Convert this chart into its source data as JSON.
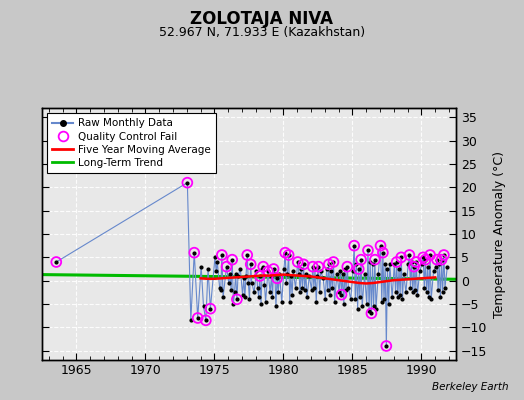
{
  "title": "ZOLOTAJA NIVA",
  "subtitle": "52.967 N, 71.933 E (Kazakhstan)",
  "ylabel": "Temperature Anomaly (°C)",
  "credit": "Berkeley Earth",
  "xlim": [
    1962.5,
    1992.5
  ],
  "ylim": [
    -17,
    37
  ],
  "yticks": [
    -15,
    -10,
    -5,
    0,
    5,
    10,
    15,
    20,
    25,
    30,
    35
  ],
  "xticks": [
    1965,
    1970,
    1975,
    1980,
    1985,
    1990
  ],
  "bg_color": "#c8c8c8",
  "plot_bg_color": "#e8e8e8",
  "raw_color": "#6688cc",
  "raw_dot_color": "#000000",
  "qc_color": "#ff00ff",
  "moving_avg_color": "#ff0000",
  "trend_color": "#00bb00",
  "grid_color": "#ffffff",
  "raw_monthly_data": [
    [
      1963.54,
      4.0
    ],
    [
      1973.04,
      21.0
    ],
    [
      1973.29,
      -8.5
    ],
    [
      1973.54,
      6.0
    ],
    [
      1973.79,
      -8.0
    ],
    [
      1974.04,
      3.0
    ],
    [
      1974.21,
      -5.5
    ],
    [
      1974.38,
      -8.5
    ],
    [
      1974.54,
      2.5
    ],
    [
      1974.71,
      -6.0
    ],
    [
      1975.04,
      5.0
    ],
    [
      1975.13,
      2.0
    ],
    [
      1975.21,
      4.0
    ],
    [
      1975.38,
      -1.5
    ],
    [
      1975.46,
      -2.0
    ],
    [
      1975.54,
      5.5
    ],
    [
      1975.63,
      -3.5
    ],
    [
      1975.88,
      3.0
    ],
    [
      1976.04,
      -0.5
    ],
    [
      1976.13,
      1.5
    ],
    [
      1976.21,
      -2.0
    ],
    [
      1976.29,
      4.5
    ],
    [
      1976.38,
      -5.0
    ],
    [
      1976.46,
      -2.5
    ],
    [
      1976.54,
      1.5
    ],
    [
      1976.63,
      -4.0
    ],
    [
      1976.71,
      1.0
    ],
    [
      1976.88,
      2.5
    ],
    [
      1977.04,
      -3.0
    ],
    [
      1977.13,
      0.5
    ],
    [
      1977.21,
      -3.5
    ],
    [
      1977.29,
      1.0
    ],
    [
      1977.38,
      5.5
    ],
    [
      1977.46,
      -0.5
    ],
    [
      1977.54,
      -4.0
    ],
    [
      1977.63,
      3.5
    ],
    [
      1977.71,
      -0.5
    ],
    [
      1977.88,
      -2.5
    ],
    [
      1978.04,
      2.0
    ],
    [
      1978.13,
      -1.5
    ],
    [
      1978.21,
      -3.5
    ],
    [
      1978.29,
      1.0
    ],
    [
      1978.38,
      -5.0
    ],
    [
      1978.46,
      2.5
    ],
    [
      1978.54,
      3.0
    ],
    [
      1978.63,
      -1.0
    ],
    [
      1978.71,
      -4.5
    ],
    [
      1978.88,
      2.0
    ],
    [
      1979.04,
      -2.5
    ],
    [
      1979.13,
      1.0
    ],
    [
      1979.21,
      -3.5
    ],
    [
      1979.29,
      2.5
    ],
    [
      1979.38,
      1.5
    ],
    [
      1979.46,
      -5.5
    ],
    [
      1979.54,
      0.5
    ],
    [
      1979.63,
      -2.5
    ],
    [
      1979.71,
      1.5
    ],
    [
      1979.88,
      -4.5
    ],
    [
      1980.04,
      2.5
    ],
    [
      1980.13,
      6.0
    ],
    [
      1980.21,
      -0.5
    ],
    [
      1980.29,
      1.5
    ],
    [
      1980.38,
      5.5
    ],
    [
      1980.46,
      -4.5
    ],
    [
      1980.54,
      1.0
    ],
    [
      1980.63,
      -3.0
    ],
    [
      1980.71,
      2.0
    ],
    [
      1980.88,
      -1.5
    ],
    [
      1981.04,
      4.0
    ],
    [
      1981.13,
      1.5
    ],
    [
      1981.21,
      -2.5
    ],
    [
      1981.29,
      2.5
    ],
    [
      1981.38,
      -1.5
    ],
    [
      1981.46,
      3.5
    ],
    [
      1981.54,
      -2.0
    ],
    [
      1981.63,
      1.5
    ],
    [
      1981.71,
      -3.5
    ],
    [
      1981.88,
      1.0
    ],
    [
      1982.04,
      -2.0
    ],
    [
      1982.13,
      3.0
    ],
    [
      1982.21,
      -1.5
    ],
    [
      1982.29,
      2.5
    ],
    [
      1982.38,
      -4.5
    ],
    [
      1982.46,
      1.0
    ],
    [
      1982.54,
      3.0
    ],
    [
      1982.63,
      -2.5
    ],
    [
      1982.71,
      2.0
    ],
    [
      1982.88,
      0.5
    ],
    [
      1983.04,
      -4.0
    ],
    [
      1983.13,
      2.5
    ],
    [
      1983.21,
      -2.0
    ],
    [
      1983.29,
      3.5
    ],
    [
      1983.38,
      -3.0
    ],
    [
      1983.46,
      2.0
    ],
    [
      1983.54,
      -1.5
    ],
    [
      1983.63,
      4.0
    ],
    [
      1983.71,
      -4.5
    ],
    [
      1983.88,
      1.5
    ],
    [
      1984.04,
      -2.5
    ],
    [
      1984.13,
      2.0
    ],
    [
      1984.21,
      -3.0
    ],
    [
      1984.29,
      1.5
    ],
    [
      1984.38,
      -5.0
    ],
    [
      1984.46,
      2.5
    ],
    [
      1984.54,
      -2.0
    ],
    [
      1984.63,
      3.0
    ],
    [
      1984.71,
      -1.5
    ],
    [
      1984.88,
      -4.0
    ],
    [
      1985.04,
      2.0
    ],
    [
      1985.13,
      7.5
    ],
    [
      1985.21,
      -4.0
    ],
    [
      1985.29,
      3.5
    ],
    [
      1985.38,
      -6.0
    ],
    [
      1985.46,
      2.5
    ],
    [
      1985.54,
      -3.5
    ],
    [
      1985.63,
      4.5
    ],
    [
      1985.71,
      -5.5
    ],
    [
      1985.88,
      1.5
    ],
    [
      1986.04,
      -5.0
    ],
    [
      1986.13,
      6.5
    ],
    [
      1986.21,
      -6.5
    ],
    [
      1986.29,
      4.0
    ],
    [
      1986.38,
      -7.0
    ],
    [
      1986.46,
      3.5
    ],
    [
      1986.54,
      -5.5
    ],
    [
      1986.63,
      4.5
    ],
    [
      1986.71,
      -6.0
    ],
    [
      1986.88,
      1.5
    ],
    [
      1987.04,
      7.5
    ],
    [
      1987.13,
      -4.5
    ],
    [
      1987.21,
      6.0
    ],
    [
      1987.29,
      -4.0
    ],
    [
      1987.38,
      3.5
    ],
    [
      1987.46,
      -14.0
    ],
    [
      1987.54,
      2.5
    ],
    [
      1987.63,
      -5.0
    ],
    [
      1987.71,
      3.5
    ],
    [
      1987.88,
      -3.5
    ],
    [
      1988.04,
      3.5
    ],
    [
      1988.13,
      -2.5
    ],
    [
      1988.21,
      4.0
    ],
    [
      1988.29,
      -3.5
    ],
    [
      1988.38,
      2.5
    ],
    [
      1988.46,
      -3.0
    ],
    [
      1988.54,
      5.0
    ],
    [
      1988.63,
      -4.0
    ],
    [
      1988.71,
      1.5
    ],
    [
      1988.88,
      -2.5
    ],
    [
      1989.04,
      3.5
    ],
    [
      1989.13,
      5.5
    ],
    [
      1989.21,
      -1.5
    ],
    [
      1989.29,
      4.0
    ],
    [
      1989.38,
      -2.5
    ],
    [
      1989.46,
      3.0
    ],
    [
      1989.54,
      -2.0
    ],
    [
      1989.63,
      4.0
    ],
    [
      1989.71,
      -3.0
    ],
    [
      1989.88,
      2.0
    ],
    [
      1990.04,
      3.5
    ],
    [
      1990.13,
      5.0
    ],
    [
      1990.21,
      -1.5
    ],
    [
      1990.29,
      4.5
    ],
    [
      1990.38,
      -2.5
    ],
    [
      1990.46,
      3.0
    ],
    [
      1990.54,
      -3.5
    ],
    [
      1990.63,
      5.5
    ],
    [
      1990.71,
      -4.0
    ],
    [
      1990.88,
      2.0
    ],
    [
      1991.04,
      3.0
    ],
    [
      1991.13,
      4.5
    ],
    [
      1991.21,
      -2.0
    ],
    [
      1991.29,
      3.5
    ],
    [
      1991.38,
      -3.5
    ],
    [
      1991.46,
      4.5
    ],
    [
      1991.54,
      -2.5
    ],
    [
      1991.63,
      5.5
    ],
    [
      1991.71,
      -1.5
    ],
    [
      1991.88,
      3.0
    ]
  ],
  "qc_fail_points": [
    [
      1963.54,
      4.0
    ],
    [
      1973.04,
      21.0
    ],
    [
      1973.54,
      6.0
    ],
    [
      1973.79,
      -8.0
    ],
    [
      1974.38,
      -8.5
    ],
    [
      1974.71,
      -6.0
    ],
    [
      1975.54,
      5.5
    ],
    [
      1975.88,
      3.0
    ],
    [
      1976.29,
      4.5
    ],
    [
      1976.63,
      -4.0
    ],
    [
      1977.38,
      5.5
    ],
    [
      1977.63,
      3.5
    ],
    [
      1978.29,
      1.0
    ],
    [
      1978.54,
      3.0
    ],
    [
      1978.88,
      2.0
    ],
    [
      1979.29,
      2.5
    ],
    [
      1979.54,
      0.5
    ],
    [
      1980.13,
      6.0
    ],
    [
      1980.38,
      5.5
    ],
    [
      1981.04,
      4.0
    ],
    [
      1981.46,
      3.5
    ],
    [
      1982.13,
      3.0
    ],
    [
      1982.54,
      3.0
    ],
    [
      1983.29,
      3.5
    ],
    [
      1983.63,
      4.0
    ],
    [
      1984.21,
      -3.0
    ],
    [
      1984.63,
      3.0
    ],
    [
      1985.13,
      7.5
    ],
    [
      1985.46,
      2.5
    ],
    [
      1985.63,
      4.5
    ],
    [
      1986.13,
      6.5
    ],
    [
      1986.38,
      -7.0
    ],
    [
      1986.63,
      4.5
    ],
    [
      1987.04,
      7.5
    ],
    [
      1987.21,
      6.0
    ],
    [
      1987.46,
      -14.0
    ],
    [
      1988.21,
      4.0
    ],
    [
      1988.54,
      5.0
    ],
    [
      1989.13,
      5.5
    ],
    [
      1989.46,
      3.0
    ],
    [
      1989.63,
      4.0
    ],
    [
      1990.13,
      5.0
    ],
    [
      1990.29,
      4.5
    ],
    [
      1990.63,
      5.5
    ],
    [
      1991.13,
      4.5
    ],
    [
      1991.46,
      4.5
    ],
    [
      1991.63,
      5.5
    ]
  ],
  "moving_avg": [
    [
      1974.0,
      0.5
    ],
    [
      1974.5,
      0.4
    ],
    [
      1975.0,
      0.4
    ],
    [
      1975.5,
      0.5
    ],
    [
      1976.0,
      0.6
    ],
    [
      1976.5,
      0.7
    ],
    [
      1977.0,
      0.8
    ],
    [
      1977.5,
      0.9
    ],
    [
      1978.0,
      1.0
    ],
    [
      1978.5,
      1.1
    ],
    [
      1979.0,
      1.1
    ],
    [
      1979.5,
      1.2
    ],
    [
      1980.0,
      1.3
    ],
    [
      1980.5,
      1.2
    ],
    [
      1981.0,
      1.1
    ],
    [
      1981.5,
      1.0
    ],
    [
      1982.0,
      0.9
    ],
    [
      1982.5,
      0.7
    ],
    [
      1983.0,
      0.5
    ],
    [
      1983.5,
      0.3
    ],
    [
      1984.0,
      0.1
    ],
    [
      1984.5,
      -0.1
    ],
    [
      1985.0,
      -0.3
    ],
    [
      1985.5,
      -0.5
    ],
    [
      1986.0,
      -0.6
    ],
    [
      1986.5,
      -0.5
    ],
    [
      1987.0,
      -0.3
    ],
    [
      1987.5,
      -0.1
    ],
    [
      1988.0,
      0.1
    ],
    [
      1988.5,
      0.2
    ],
    [
      1989.0,
      0.3
    ],
    [
      1989.5,
      0.4
    ],
    [
      1990.0,
      0.5
    ],
    [
      1990.5,
      0.6
    ],
    [
      1991.0,
      0.7
    ]
  ],
  "trend_x": [
    1962.5,
    1992.5
  ],
  "trend_y": [
    1.3,
    0.3
  ]
}
